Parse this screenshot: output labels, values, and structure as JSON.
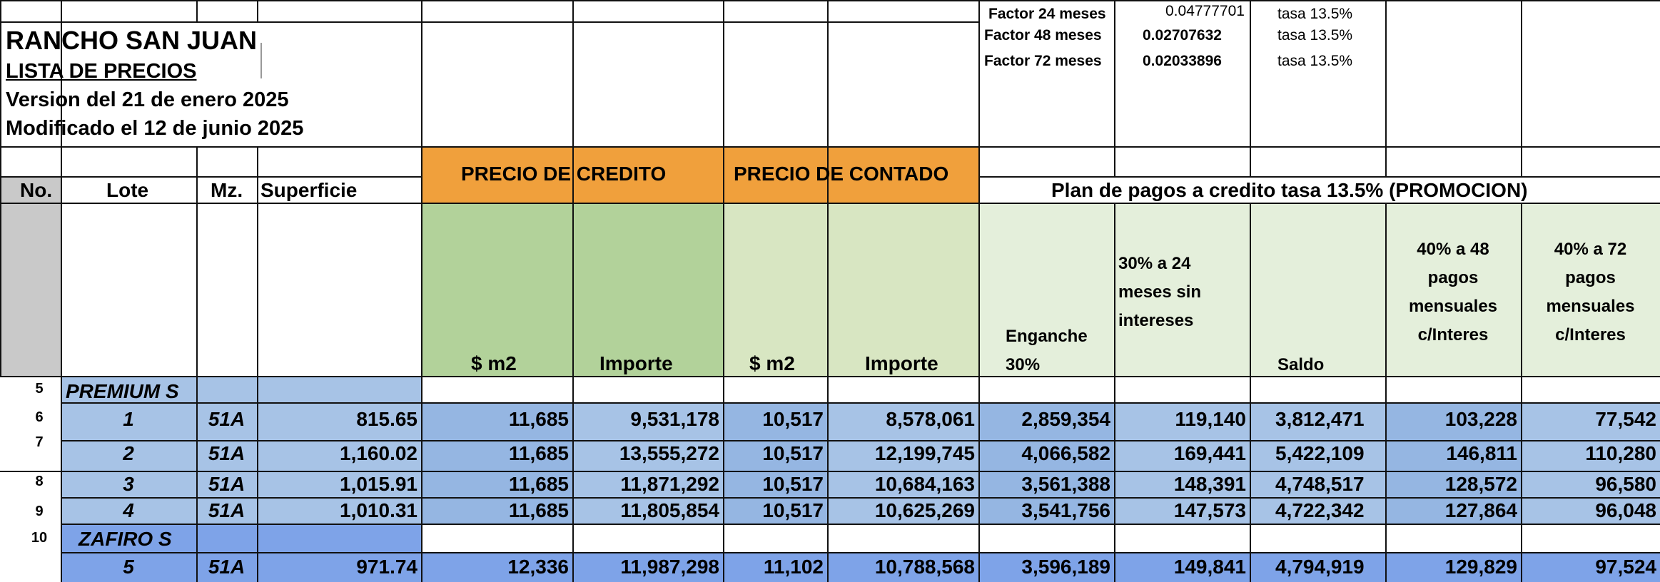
{
  "title": {
    "project": "RANCHO SAN JUAN",
    "list": "LISTA DE PRECIOS",
    "version": "Version del 21 de enero 2025",
    "modified": "Modificado el 12 de junio 2025"
  },
  "factors": [
    {
      "label": "Factor 24 meses",
      "value": "0.04777701",
      "rate": "tasa 13.5%"
    },
    {
      "label": "Factor 48 meses",
      "value": "0.02707632",
      "rate": "tasa 13.5%"
    },
    {
      "label": "Factor 72 meses",
      "value": "0.02033896",
      "rate": "tasa 13.5%"
    }
  ],
  "headers": {
    "no": "No.",
    "lote": "Lote",
    "mz": "Mz.",
    "superficie": "Superficie",
    "precio_credito": "PRECIO DE CREDITO",
    "precio_contado": "PRECIO DE CONTADO",
    "plan": "Plan de pagos a credito tasa 13.5% (PROMOCION)",
    "m2_credito": "$ m2",
    "importe_credito": "Importe",
    "m2_contado": "$ m2",
    "importe_contado": "Importe",
    "enganche": [
      "Enganche",
      "30%"
    ],
    "treinta": [
      "30% a 24",
      "meses sin",
      "intereses"
    ],
    "saldo": "Saldo",
    "cuarenta48": [
      "40% a 48",
      "pagos",
      "mensuales",
      "c/Interes"
    ],
    "cuarenta72": [
      "40% a 72",
      "pagos",
      "mensuales",
      "c/Interes"
    ]
  },
  "row_numbers": [
    "5",
    "6",
    "7",
    "8",
    "9",
    "10"
  ],
  "groups": {
    "premium": "PREMIUM S",
    "zafiro": "ZAFIRO S"
  },
  "rows": [
    {
      "lote": "1",
      "mz": "51A",
      "sup": "815.65",
      "m2c": "11,685",
      "impc": "9,531,178",
      "m2k": "10,517",
      "impk": "8,578,061",
      "eng": "2,859,354",
      "p24": "119,140",
      "saldo": "3,812,471",
      "p48": "103,228",
      "p72": "77,542"
    },
    {
      "lote": "2",
      "mz": "51A",
      "sup": "1,160.02",
      "m2c": "11,685",
      "impc": "13,555,272",
      "m2k": "10,517",
      "impk": "12,199,745",
      "eng": "4,066,582",
      "p24": "169,441",
      "saldo": "5,422,109",
      "p48": "146,811",
      "p72": "110,280"
    },
    {
      "lote": "3",
      "mz": "51A",
      "sup": "1,015.91",
      "m2c": "11,685",
      "impc": "11,871,292",
      "m2k": "10,517",
      "impk": "10,684,163",
      "eng": "3,561,388",
      "p24": "148,391",
      "saldo": "4,748,517",
      "p48": "128,572",
      "p72": "96,580"
    },
    {
      "lote": "4",
      "mz": "51A",
      "sup": "1,010.31",
      "m2c": "11,685",
      "impc": "11,805,854",
      "m2k": "10,517",
      "impk": "10,625,269",
      "eng": "3,541,756",
      "p24": "147,573",
      "saldo": "4,722,342",
      "p48": "127,864",
      "p72": "96,048"
    },
    {
      "lote": "5",
      "mz": "51A",
      "sup": "971.74",
      "m2c": "12,336",
      "impc": "11,987,298",
      "m2k": "11,102",
      "impk": "10,788,568",
      "eng": "3,596,189",
      "p24": "149,841",
      "saldo": "4,794,919",
      "p48": "129,829",
      "p72": "97,524"
    }
  ],
  "colors": {
    "orange": "#f0a03c",
    "green_dark": "#b2d29a",
    "green_mid": "#d8e6c2",
    "green_light": "#e4efdb",
    "blue_row": "#a7c3e6",
    "blue_dark": "#8fb0e0",
    "blue_zafiro": "#6f9ae8",
    "gray": "#c9c9c9"
  }
}
